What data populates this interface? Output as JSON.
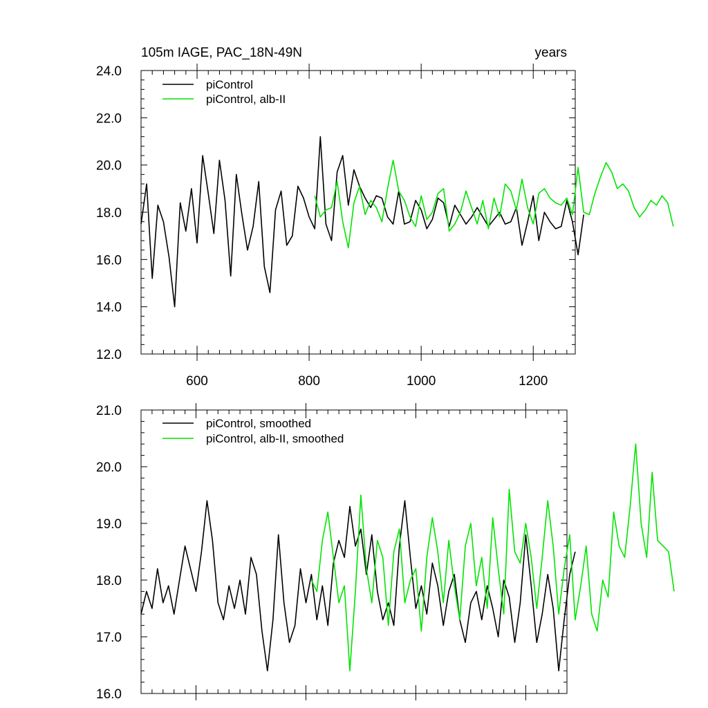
{
  "chart_data": [
    {
      "type": "line",
      "title_left": "105m IAGE, PAC_18N-49N",
      "title_right": "years",
      "xlabel": "",
      "ylabel": "",
      "xlim": [
        500,
        1275
      ],
      "ylim": [
        12.0,
        24.0
      ],
      "x_ticks": [
        600,
        800,
        1000,
        1200
      ],
      "x_tick_labels": [
        "600",
        "800",
        "1000",
        "1200"
      ],
      "y_ticks": [
        12,
        14,
        16,
        18,
        20,
        22,
        24
      ],
      "y_tick_labels": [
        "12.0",
        "14.0",
        "16.0",
        "18.0",
        "20.0",
        "22.0",
        "24.0"
      ],
      "grid": false,
      "legend_position": "top-left",
      "series": [
        {
          "name": "piControl",
          "color": "#000000",
          "x_start": 500,
          "x_step": 10,
          "values": [
            17.5,
            19.2,
            15.2,
            18.3,
            17.6,
            16.1,
            14.0,
            18.4,
            17.2,
            19.0,
            16.7,
            20.4,
            18.8,
            17.1,
            20.2,
            18.5,
            15.3,
            19.6,
            17.9,
            16.4,
            17.4,
            19.3,
            15.7,
            14.6,
            18.1,
            18.9,
            16.6,
            17.0,
            19.1,
            18.6,
            17.8,
            17.3,
            21.2,
            17.5,
            16.8,
            19.7,
            20.4,
            18.3,
            19.8,
            19.1,
            18.6,
            18.2,
            18.7,
            18.6,
            17.8,
            17.5,
            18.9,
            17.5,
            17.6,
            18.5,
            18.1,
            17.3,
            17.7,
            18.6,
            18.4,
            17.4,
            18.3,
            17.9,
            17.5,
            17.8,
            18.2,
            17.8,
            17.4,
            17.7,
            18.0,
            17.5,
            17.6,
            18.2,
            16.6,
            17.6,
            18.7,
            16.8,
            18.0,
            17.6,
            17.3,
            17.4,
            18.5,
            17.6,
            16.2,
            17.9
          ]
        },
        {
          "name": "piControl, alb-II",
          "color": "#00e400",
          "x_start": 810,
          "x_step": 10,
          "values": [
            18.7,
            17.8,
            18.1,
            18.2,
            19.3,
            17.6,
            16.5,
            18.4,
            19.1,
            17.9,
            18.5,
            18.2,
            17.6,
            19.0,
            20.2,
            18.9,
            18.5,
            17.8,
            17.4,
            18.7,
            17.7,
            18.0,
            18.8,
            19.0,
            17.2,
            17.5,
            18.0,
            18.9,
            18.2,
            17.5,
            18.5,
            17.3,
            18.6,
            17.8,
            19.2,
            18.9,
            18.1,
            19.4,
            18.2,
            17.5,
            18.8,
            19.0,
            18.6,
            18.4,
            18.3,
            18.6,
            17.9,
            19.9,
            18.0,
            17.9,
            18.8,
            19.5,
            20.1,
            19.7,
            19.0,
            19.2,
            18.9,
            18.2,
            17.8,
            18.1,
            18.5,
            18.3,
            18.7,
            18.4,
            17.4
          ]
        }
      ]
    },
    {
      "type": "line",
      "xlabel": "",
      "ylabel": "",
      "xlim": [
        500,
        1275
      ],
      "ylim": [
        16.0,
        21.0
      ],
      "x_ticks": [
        600,
        800,
        1000,
        1200
      ],
      "y_ticks": [
        16,
        17,
        18,
        19,
        20,
        21
      ],
      "y_tick_labels": [
        "16.0",
        "17.0",
        "18.0",
        "19.0",
        "20.0",
        "21.0"
      ],
      "grid": false,
      "legend_position": "top-left",
      "series": [
        {
          "name": "piControl, smoothed",
          "color": "#000000",
          "x_start": 500,
          "x_step": 10,
          "values": [
            17.4,
            17.8,
            17.5,
            18.2,
            17.6,
            17.9,
            17.4,
            18.0,
            18.6,
            18.2,
            17.8,
            18.5,
            19.4,
            18.7,
            17.6,
            17.3,
            17.9,
            17.5,
            18.0,
            17.4,
            18.4,
            18.1,
            17.1,
            16.4,
            17.3,
            18.8,
            17.6,
            16.9,
            17.2,
            18.2,
            17.6,
            18.1,
            17.3,
            17.9,
            17.2,
            18.3,
            18.7,
            18.4,
            19.3,
            18.6,
            18.9,
            18.1,
            18.8,
            17.8,
            17.3,
            17.6,
            17.2,
            18.6,
            19.4,
            18.4,
            17.5,
            17.9,
            17.4,
            18.3,
            17.9,
            17.2,
            17.8,
            18.1,
            17.3,
            16.9,
            17.6,
            17.8,
            17.3,
            17.9,
            17.5,
            17.0,
            18.0,
            17.7,
            16.9,
            17.6,
            18.8,
            17.9,
            16.9,
            17.4,
            18.1,
            17.5,
            16.4,
            17.3,
            18.1,
            18.5
          ]
        },
        {
          "name": "piControl, alb-II, smoothed",
          "color": "#00e400",
          "x_start": 810,
          "x_step": 10,
          "values": [
            18.0,
            17.8,
            18.7,
            19.2,
            18.4,
            17.6,
            17.9,
            16.4,
            17.8,
            19.5,
            18.2,
            17.6,
            18.7,
            18.4,
            17.2,
            18.5,
            18.9,
            17.6,
            18.0,
            18.2,
            17.1,
            18.4,
            19.1,
            18.5,
            17.6,
            18.7,
            17.9,
            17.3,
            18.6,
            19.0,
            17.9,
            18.4,
            17.5,
            19.1,
            18.2,
            17.4,
            19.6,
            18.5,
            18.3,
            19.0,
            18.4,
            17.5,
            18.4,
            19.4,
            18.6,
            17.4,
            18.2,
            18.8,
            17.3,
            17.9,
            18.6,
            17.4,
            17.1,
            18.0,
            17.7,
            19.2,
            18.6,
            18.4,
            19.3,
            20.4,
            19.0,
            18.4,
            19.9,
            18.7,
            18.6,
            18.5,
            17.8
          ]
        }
      ]
    }
  ]
}
